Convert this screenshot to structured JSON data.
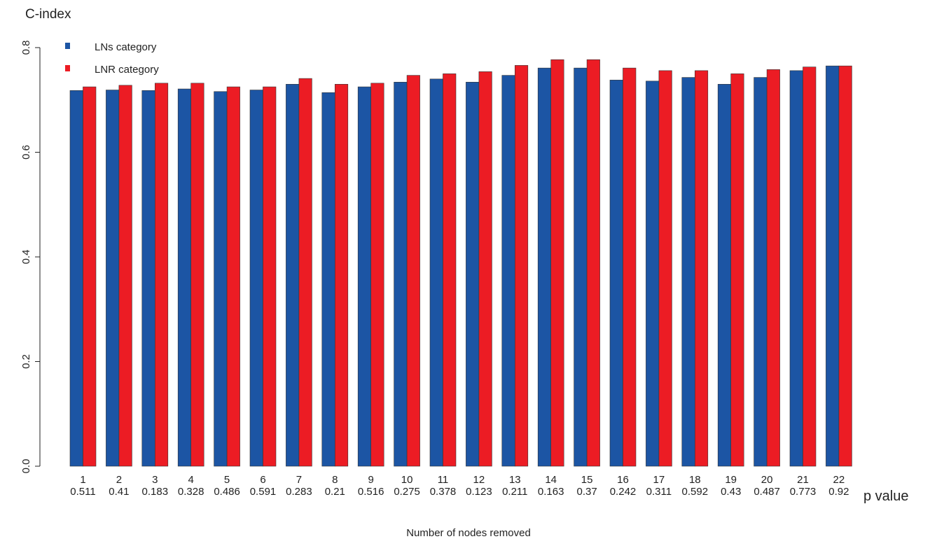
{
  "chart_data": {
    "type": "bar",
    "ylabel": "C-index",
    "xlabel": "Number of nodes removed",
    "pvalue_label": "p value",
    "ylim": [
      0,
      0.8
    ],
    "yticks": [
      0.0,
      0.2,
      0.4,
      0.6,
      0.8
    ],
    "ytick_labels": [
      "0.0",
      "0.2",
      "0.4",
      "0.6",
      "0.8"
    ],
    "grid": false,
    "legend_position": "top-left",
    "categories": [
      "1",
      "2",
      "3",
      "4",
      "5",
      "6",
      "7",
      "8",
      "9",
      "10",
      "11",
      "12",
      "13",
      "14",
      "15",
      "16",
      "17",
      "18",
      "19",
      "20",
      "21",
      "22"
    ],
    "p_values": [
      "0.511",
      "0.41",
      "0.183",
      "0.328",
      "0.486",
      "0.591",
      "0.283",
      "0.21",
      "0.516",
      "0.275",
      "0.378",
      "0.123",
      "0.211",
      "0.163",
      "0.37",
      "0.242",
      "0.311",
      "0.592",
      "0.43",
      "0.487",
      "0.773",
      "0.92"
    ],
    "series": [
      {
        "name": "LNs category",
        "color": "#1c55a4",
        "values": [
          0.718,
          0.719,
          0.718,
          0.721,
          0.716,
          0.719,
          0.73,
          0.714,
          0.725,
          0.734,
          0.74,
          0.734,
          0.747,
          0.761,
          0.761,
          0.738,
          0.736,
          0.743,
          0.73,
          0.743,
          0.756,
          0.765
        ]
      },
      {
        "name": "LNR category",
        "color": "#ec1c24",
        "values": [
          0.725,
          0.728,
          0.732,
          0.732,
          0.725,
          0.725,
          0.741,
          0.73,
          0.732,
          0.747,
          0.75,
          0.754,
          0.766,
          0.777,
          0.777,
          0.761,
          0.756,
          0.756,
          0.75,
          0.758,
          0.763,
          0.765
        ]
      }
    ]
  }
}
